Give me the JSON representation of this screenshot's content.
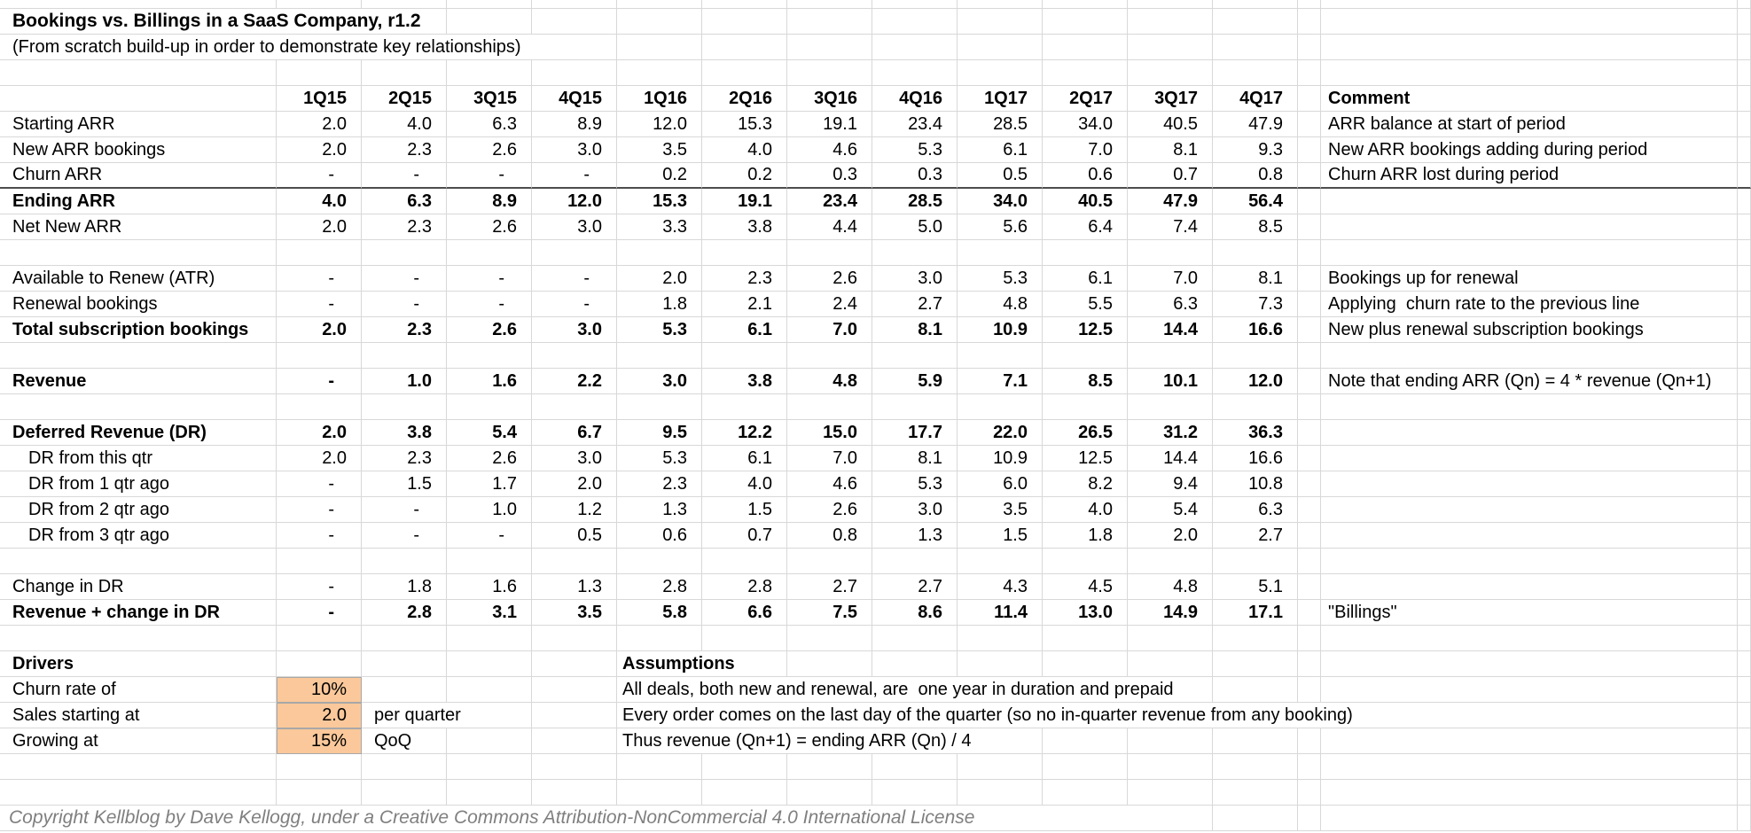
{
  "meta": {
    "title": "Bookings vs. Billings in a SaaS Company, r1.2",
    "subtitle": "(From scratch build-up in order to demonstrate key relationships)",
    "copyright": "Copyright Kellblog by Dave Kellogg, under a Creative Commons Attribution-NonCommercial 4.0 International License"
  },
  "table": {
    "quarters": [
      "1Q15",
      "2Q15",
      "3Q15",
      "4Q15",
      "1Q16",
      "2Q16",
      "3Q16",
      "4Q16",
      "1Q17",
      "2Q17",
      "3Q17",
      "4Q17"
    ],
    "comment_header": "Comment",
    "rows": [
      {
        "id": "starting-arr",
        "label": "Starting ARR",
        "values": [
          "2.0",
          "4.0",
          "6.3",
          "8.9",
          "12.0",
          "15.3",
          "19.1",
          "23.4",
          "28.5",
          "34.0",
          "40.5",
          "47.9"
        ],
        "comment": "ARR balance at start of period"
      },
      {
        "id": "new-arr-bookings",
        "label": "New ARR bookings",
        "values": [
          "2.0",
          "2.3",
          "2.6",
          "3.0",
          "3.5",
          "4.0",
          "4.6",
          "5.3",
          "6.1",
          "7.0",
          "8.1",
          "9.3"
        ],
        "comment": "New ARR bookings adding during period"
      },
      {
        "id": "churn-arr",
        "label": "Churn ARR",
        "values": [
          "-",
          "-",
          "-",
          "-",
          "0.2",
          "0.2",
          "0.3",
          "0.3",
          "0.5",
          "0.6",
          "0.7",
          "0.8"
        ],
        "comment": "Churn ARR lost during period",
        "rule_below": true
      },
      {
        "id": "ending-arr",
        "label": "Ending ARR",
        "bold": true,
        "values": [
          "4.0",
          "6.3",
          "8.9",
          "12.0",
          "15.3",
          "19.1",
          "23.4",
          "28.5",
          "34.0",
          "40.5",
          "47.9",
          "56.4"
        ]
      },
      {
        "id": "net-new-arr",
        "label": "Net New ARR",
        "values": [
          "2.0",
          "2.3",
          "2.6",
          "3.0",
          "3.3",
          "3.8",
          "4.4",
          "5.0",
          "5.6",
          "6.4",
          "7.4",
          "8.5"
        ]
      },
      {
        "id": "blank-1",
        "blank": true
      },
      {
        "id": "available-to-renew",
        "label": "Available to Renew (ATR)",
        "values": [
          "-",
          "-",
          "-",
          "-",
          "2.0",
          "2.3",
          "2.6",
          "3.0",
          "5.3",
          "6.1",
          "7.0",
          "8.1"
        ],
        "comment": "Bookings up for renewal"
      },
      {
        "id": "renewal-bookings",
        "label": "Renewal bookings",
        "values": [
          "-",
          "-",
          "-",
          "-",
          "1.8",
          "2.1",
          "2.4",
          "2.7",
          "4.8",
          "5.5",
          "6.3",
          "7.3"
        ],
        "comment": "Applying  churn rate to the previous line"
      },
      {
        "id": "total-subscription-bookings",
        "label": "Total subscription bookings",
        "bold": true,
        "values": [
          "2.0",
          "2.3",
          "2.6",
          "3.0",
          "5.3",
          "6.1",
          "7.0",
          "8.1",
          "10.9",
          "12.5",
          "14.4",
          "16.6"
        ],
        "comment": "New plus renewal subscription bookings"
      },
      {
        "id": "blank-2",
        "blank": true
      },
      {
        "id": "revenue",
        "label": "Revenue",
        "bold": true,
        "values": [
          "-",
          "1.0",
          "1.6",
          "2.2",
          "3.0",
          "3.8",
          "4.8",
          "5.9",
          "7.1",
          "8.5",
          "10.1",
          "12.0"
        ],
        "comment": "Note that ending ARR (Qn) = 4 * revenue (Qn+1)"
      },
      {
        "id": "blank-3",
        "blank": true
      },
      {
        "id": "deferred-revenue",
        "label": "Deferred Revenue (DR)",
        "bold": true,
        "values": [
          "2.0",
          "3.8",
          "5.4",
          "6.7",
          "9.5",
          "12.2",
          "15.0",
          "17.7",
          "22.0",
          "26.5",
          "31.2",
          "36.3"
        ]
      },
      {
        "id": "dr-from-this-qtr",
        "label": "DR from this qtr",
        "indent": true,
        "values": [
          "2.0",
          "2.3",
          "2.6",
          "3.0",
          "5.3",
          "6.1",
          "7.0",
          "8.1",
          "10.9",
          "12.5",
          "14.4",
          "16.6"
        ]
      },
      {
        "id": "dr-from-1-qtr-ago",
        "label": "DR from 1 qtr ago",
        "indent": true,
        "values": [
          "-",
          "1.5",
          "1.7",
          "2.0",
          "2.3",
          "4.0",
          "4.6",
          "5.3",
          "6.0",
          "8.2",
          "9.4",
          "10.8"
        ]
      },
      {
        "id": "dr-from-2-qtr-ago",
        "label": "DR from 2 qtr ago",
        "indent": true,
        "values": [
          "-",
          "-",
          "1.0",
          "1.2",
          "1.3",
          "1.5",
          "2.6",
          "3.0",
          "3.5",
          "4.0",
          "5.4",
          "6.3"
        ]
      },
      {
        "id": "dr-from-3-qtr-ago",
        "label": "DR from 3 qtr ago",
        "indent": true,
        "values": [
          "-",
          "-",
          "-",
          "0.5",
          "0.6",
          "0.7",
          "0.8",
          "1.3",
          "1.5",
          "1.8",
          "2.0",
          "2.7"
        ]
      },
      {
        "id": "blank-4",
        "blank": true
      },
      {
        "id": "change-in-dr",
        "label": "Change in DR",
        "values": [
          "-",
          "1.8",
          "1.6",
          "1.3",
          "2.8",
          "2.8",
          "2.7",
          "2.7",
          "4.3",
          "4.5",
          "4.8",
          "5.1"
        ]
      },
      {
        "id": "revenue-plus-change-in-dr",
        "label": "Revenue + change in DR",
        "bold": true,
        "values": [
          "-",
          "2.8",
          "3.1",
          "3.5",
          "5.8",
          "6.6",
          "7.5",
          "8.6",
          "11.4",
          "13.0",
          "14.9",
          "17.1"
        ],
        "comment": "\"Billings\""
      }
    ]
  },
  "drivers": {
    "heading": "Drivers",
    "items": [
      {
        "id": "churn-rate",
        "label": "Churn rate of",
        "value": "10%",
        "suffix": ""
      },
      {
        "id": "sales-starting",
        "label": "Sales starting at",
        "value": "2.0",
        "suffix": "per quarter"
      },
      {
        "id": "growth-rate",
        "label": "Growing at",
        "value": "15%",
        "suffix": "QoQ"
      }
    ]
  },
  "assumptions": {
    "heading": "Assumptions",
    "items": [
      "All deals, both new and renewal, are  one year in duration and prepaid",
      "Every order comes on the last day of the quarter (so no in-quarter revenue from any booking)",
      "Thus revenue (Qn+1) = ending ARR (Qn) / 4"
    ]
  },
  "colors": {
    "highlight_fill": "#FAC89A",
    "highlight_border": "#A8A8A8",
    "gridline": "#D8D8D8",
    "section_rule": "#4D4D4D",
    "copyright_text": "#7F7F7F"
  }
}
